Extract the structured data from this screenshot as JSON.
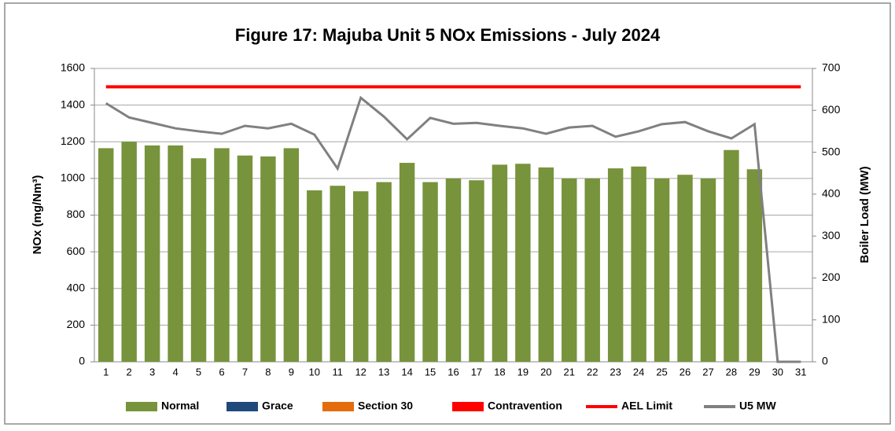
{
  "chart_data": {
    "type": "bar",
    "title": "Figure 17: Majuba Unit 5 NOx Emissions -  July 2024",
    "ylabel": "NOx (mg/Nm³)",
    "y2label": "Boiler Load (MW)",
    "categories": [
      "1",
      "2",
      "3",
      "4",
      "5",
      "6",
      "7",
      "8",
      "9",
      "10",
      "11",
      "12",
      "13",
      "14",
      "15",
      "16",
      "17",
      "18",
      "19",
      "20",
      "21",
      "22",
      "23",
      "24",
      "25",
      "26",
      "27",
      "28",
      "29",
      "30",
      "31"
    ],
    "ylim": [
      0,
      1600
    ],
    "yticks": [
      0,
      200,
      400,
      600,
      800,
      1000,
      1200,
      1400,
      1600
    ],
    "y2lim": [
      0,
      700
    ],
    "y2ticks": [
      0,
      100,
      200,
      300,
      400,
      500,
      600,
      700
    ],
    "grid": true,
    "legend": "bottom",
    "series": [
      {
        "name": "Normal",
        "type": "bar",
        "color": "#77933c",
        "values": [
          1165,
          1200,
          1180,
          1180,
          1110,
          1165,
          1125,
          1120,
          1165,
          935,
          960,
          930,
          980,
          1085,
          980,
          1000,
          990,
          1075,
          1080,
          1060,
          1000,
          1000,
          1055,
          1065,
          1000,
          1020,
          1000,
          1155,
          1050,
          null,
          null
        ]
      },
      {
        "name": "Grace",
        "type": "bar",
        "color": "#1f497d",
        "values": [
          null,
          null,
          null,
          null,
          null,
          null,
          null,
          null,
          null,
          null,
          null,
          null,
          null,
          null,
          null,
          null,
          null,
          null,
          null,
          null,
          null,
          null,
          null,
          null,
          null,
          null,
          null,
          null,
          null,
          null,
          null
        ]
      },
      {
        "name": "Section 30",
        "type": "bar",
        "color": "#e46c0a",
        "values": [
          null,
          null,
          null,
          null,
          null,
          null,
          null,
          null,
          null,
          null,
          null,
          null,
          null,
          null,
          null,
          null,
          null,
          null,
          null,
          null,
          null,
          null,
          null,
          null,
          null,
          null,
          null,
          null,
          null,
          null,
          null
        ]
      },
      {
        "name": "Contravention",
        "type": "bar",
        "color": "#ff0000",
        "values": [
          null,
          null,
          null,
          null,
          null,
          null,
          null,
          null,
          null,
          null,
          null,
          null,
          null,
          null,
          null,
          null,
          null,
          null,
          null,
          null,
          null,
          null,
          null,
          null,
          null,
          null,
          null,
          null,
          null,
          null,
          null
        ]
      },
      {
        "name": "AEL Limit",
        "type": "line",
        "color": "#ff0000",
        "values": [
          1500,
          1500,
          1500,
          1500,
          1500,
          1500,
          1500,
          1500,
          1500,
          1500,
          1500,
          1500,
          1500,
          1500,
          1500,
          1500,
          1500,
          1500,
          1500,
          1500,
          1500,
          1500,
          1500,
          1500,
          1500,
          1500,
          1500,
          1500,
          1500,
          1500,
          1500
        ]
      },
      {
        "name": "U5 MW",
        "type": "line",
        "axis": "y2",
        "color": "#808080",
        "values": [
          617,
          583,
          570,
          557,
          550,
          544,
          563,
          557,
          568,
          542,
          461,
          630,
          585,
          531,
          582,
          568,
          570,
          563,
          557,
          544,
          559,
          563,
          537,
          550,
          567,
          572,
          550,
          533,
          567,
          0,
          0
        ]
      }
    ]
  }
}
